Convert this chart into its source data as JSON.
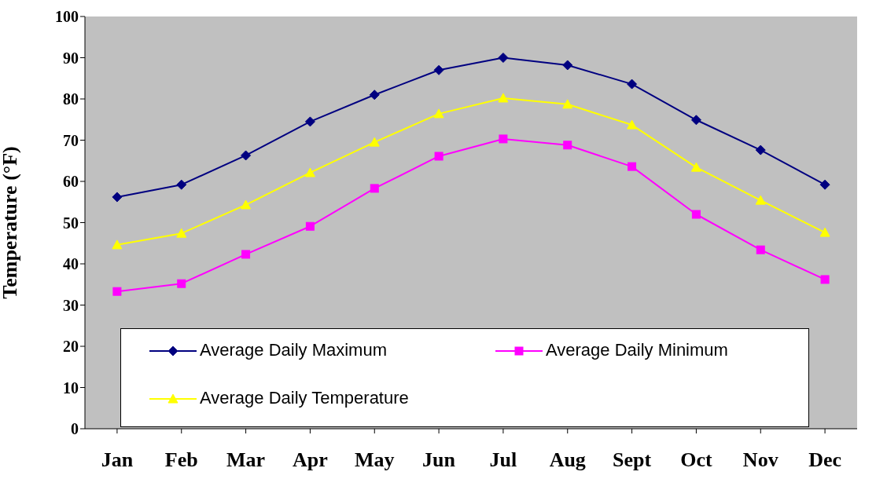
{
  "chart_data": {
    "type": "line",
    "ylabel": "Temperature (°F)",
    "categories": [
      "Jan",
      "Feb",
      "Mar",
      "Apr",
      "May",
      "Jun",
      "Jul",
      "Aug",
      "Sept",
      "Oct",
      "Nov",
      "Dec"
    ],
    "series": [
      {
        "name": "Average Daily Maximum",
        "color": "#000080",
        "marker": "diamond",
        "values": [
          56.2,
          59.2,
          66.3,
          74.5,
          81,
          87,
          90,
          88.2,
          83.6,
          74.9,
          67.6,
          59.2
        ]
      },
      {
        "name": "Average Daily Minimum",
        "color": "#ff00ff",
        "marker": "square",
        "values": [
          33.3,
          35.2,
          42.3,
          49.1,
          58.3,
          66.1,
          70.3,
          68.8,
          63.6,
          52,
          43.4,
          36.2
        ]
      },
      {
        "name": "Average Daily Temperature",
        "color": "#ffff00",
        "marker": "triangle",
        "values": [
          44.6,
          47.4,
          54.3,
          62.1,
          69.5,
          76.4,
          80.2,
          78.7,
          73.7,
          63.4,
          55.4,
          47.6
        ]
      }
    ],
    "ylim": [
      0,
      100
    ],
    "yticks": [
      0,
      10,
      20,
      30,
      40,
      50,
      60,
      70,
      80,
      90,
      100
    ],
    "grid": false,
    "legend": "bottom"
  }
}
